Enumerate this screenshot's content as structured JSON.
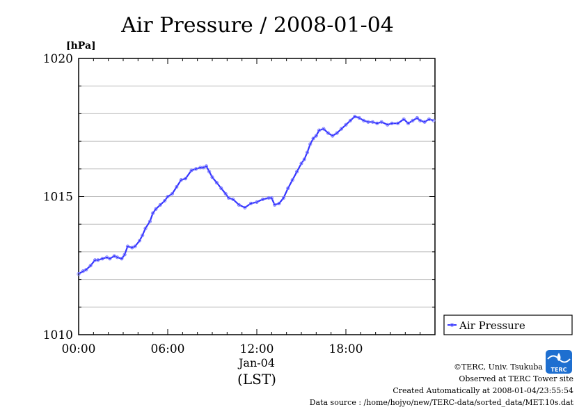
{
  "chart_data": {
    "type": "line",
    "title": "Air Pressure / 2008-01-04",
    "ylabel": "[hPa]",
    "ylim": [
      1010,
      1020
    ],
    "yticks": [
      1010,
      1015,
      1020
    ],
    "xlim_hours": [
      0,
      24
    ],
    "x_tick_labels": [
      "00:00",
      "06:00",
      "12:00",
      "18:00"
    ],
    "x_date_label": "Jan-04",
    "x_unit_label": "(LST)",
    "legend": {
      "position": "right",
      "entries": [
        "Air Pressure"
      ]
    },
    "grid": true,
    "series": [
      {
        "name": "Air Pressure",
        "color": "#3333ff",
        "x_hours": [
          0,
          0.3,
          0.5,
          0.8,
          1.1,
          1.3,
          1.6,
          1.9,
          2.1,
          2.4,
          2.6,
          2.9,
          3.1,
          3.3,
          3.6,
          3.8,
          4.1,
          4.3,
          4.5,
          4.8,
          5.0,
          5.2,
          5.5,
          5.8,
          6.0,
          6.3,
          6.6,
          6.9,
          7.2,
          7.6,
          7.9,
          8.2,
          8.4,
          8.6,
          8.8,
          9.0,
          9.3,
          9.6,
          9.9,
          10.1,
          10.4,
          10.8,
          11.2,
          11.6,
          12.0,
          12.4,
          12.8,
          13.0,
          13.2,
          13.5,
          13.8,
          14.1,
          14.4,
          14.7,
          15.0,
          15.2,
          15.4,
          15.6,
          15.8,
          16.0,
          16.2,
          16.5,
          16.8,
          17.1,
          17.4,
          17.7,
          18.0,
          18.3,
          18.6,
          18.9,
          19.2,
          19.5,
          19.8,
          20.1,
          20.4,
          20.8,
          21.1,
          21.5,
          21.9,
          22.2,
          22.5,
          22.8,
          23.0,
          23.3,
          23.6,
          23.9
        ],
        "values": [
          1012.2,
          1012.3,
          1012.35,
          1012.5,
          1012.7,
          1012.7,
          1012.75,
          1012.8,
          1012.75,
          1012.85,
          1012.8,
          1012.75,
          1012.9,
          1013.2,
          1013.15,
          1013.2,
          1013.4,
          1013.6,
          1013.85,
          1014.1,
          1014.4,
          1014.55,
          1014.7,
          1014.85,
          1015.0,
          1015.1,
          1015.35,
          1015.6,
          1015.65,
          1015.95,
          1016.0,
          1016.05,
          1016.05,
          1016.1,
          1015.9,
          1015.7,
          1015.5,
          1015.3,
          1015.1,
          1014.95,
          1014.9,
          1014.7,
          1014.6,
          1014.75,
          1014.8,
          1014.9,
          1014.95,
          1014.95,
          1014.7,
          1014.75,
          1014.95,
          1015.3,
          1015.6,
          1015.9,
          1016.2,
          1016.35,
          1016.6,
          1016.9,
          1017.1,
          1017.2,
          1017.4,
          1017.45,
          1017.3,
          1017.2,
          1017.3,
          1017.45,
          1017.6,
          1017.75,
          1017.9,
          1017.85,
          1017.75,
          1017.7,
          1017.7,
          1017.65,
          1017.7,
          1017.6,
          1017.65,
          1017.65,
          1017.8,
          1017.65,
          1017.75,
          1017.85,
          1017.75,
          1017.7,
          1017.8,
          1017.75
        ]
      }
    ]
  },
  "footer": {
    "copyright": "©TERC, Univ. Tsukuba",
    "observed": "Observed at TERC Tower site",
    "created": "Created Automatically at 2008-01-04/23:55:54",
    "source": "Data source : /home/hojyo/new/TERC-data/sorted_data/MET.10s.dat",
    "logo_text": "TERC"
  }
}
